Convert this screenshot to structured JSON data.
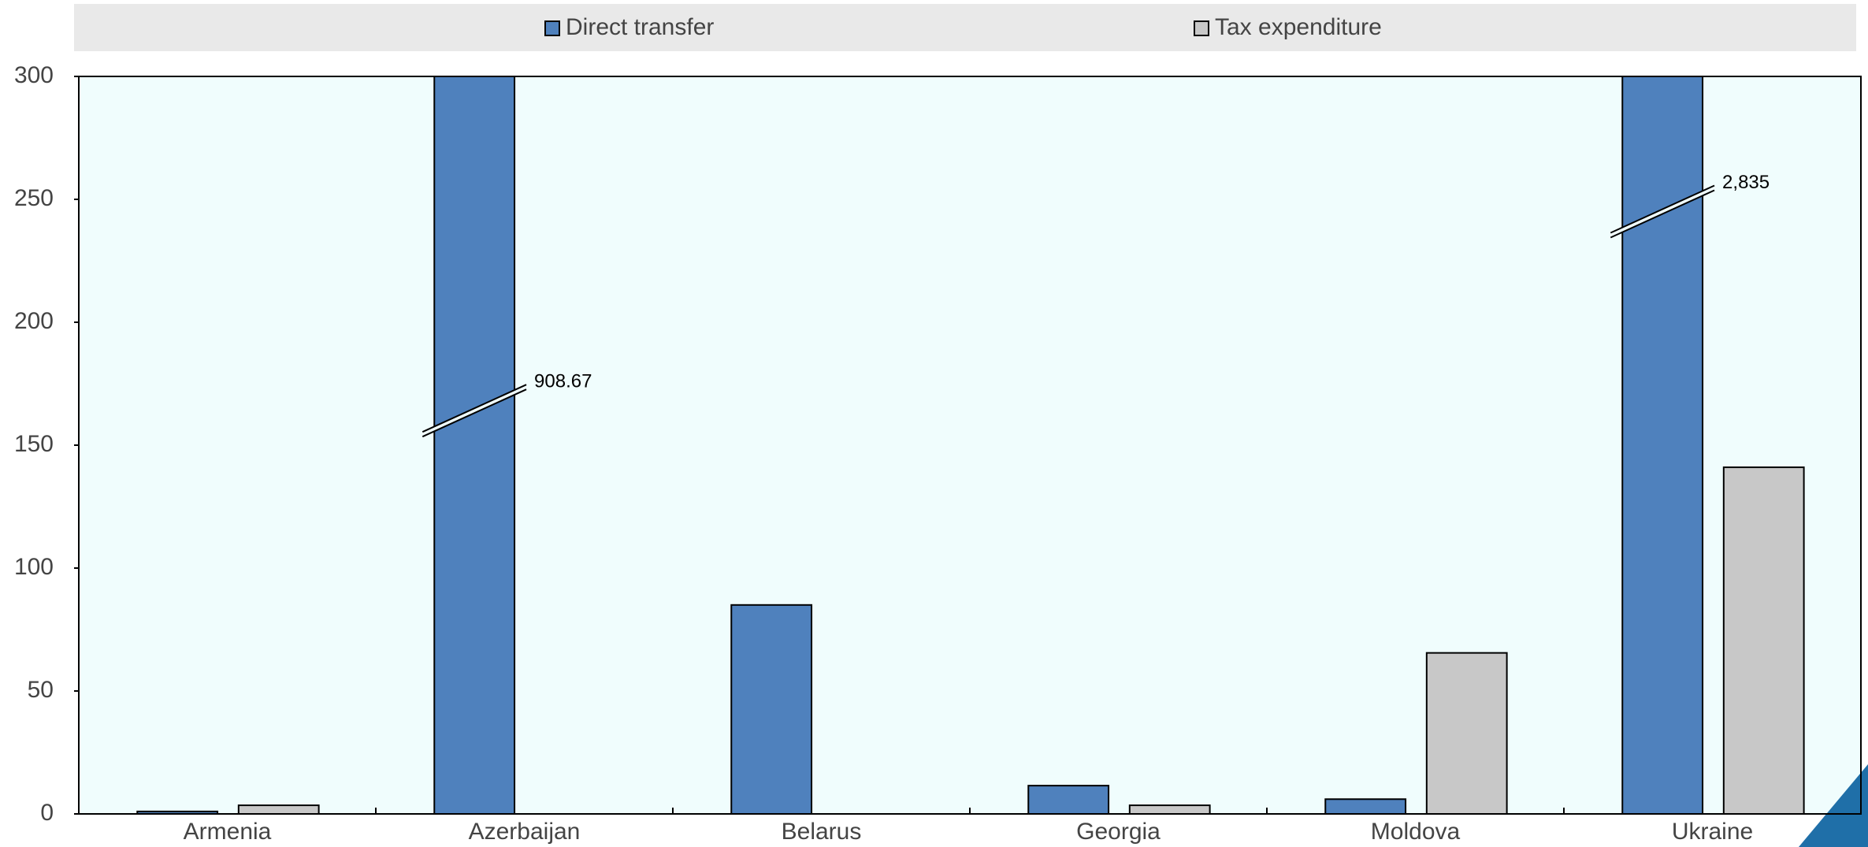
{
  "chart_data": {
    "type": "bar",
    "categories": [
      "Armenia",
      "Azerbaijan",
      "Belarus",
      "Georgia",
      "Moldova",
      "Ukraine"
    ],
    "series": [
      {
        "name": "Direct transfer",
        "color": "#4f81bd",
        "values": [
          1,
          908.67,
          85,
          11.5,
          6,
          2835
        ],
        "value_labels": [
          null,
          "908.67",
          null,
          null,
          null,
          "2,835"
        ]
      },
      {
        "name": "Tax expenditure",
        "color": "#c8c8c8",
        "values": [
          3.5,
          null,
          null,
          3.5,
          65.5,
          141
        ]
      }
    ],
    "ylim": [
      0,
      300
    ],
    "yticks": [
      0,
      50,
      100,
      150,
      200,
      250,
      300
    ],
    "legend": "top"
  }
}
